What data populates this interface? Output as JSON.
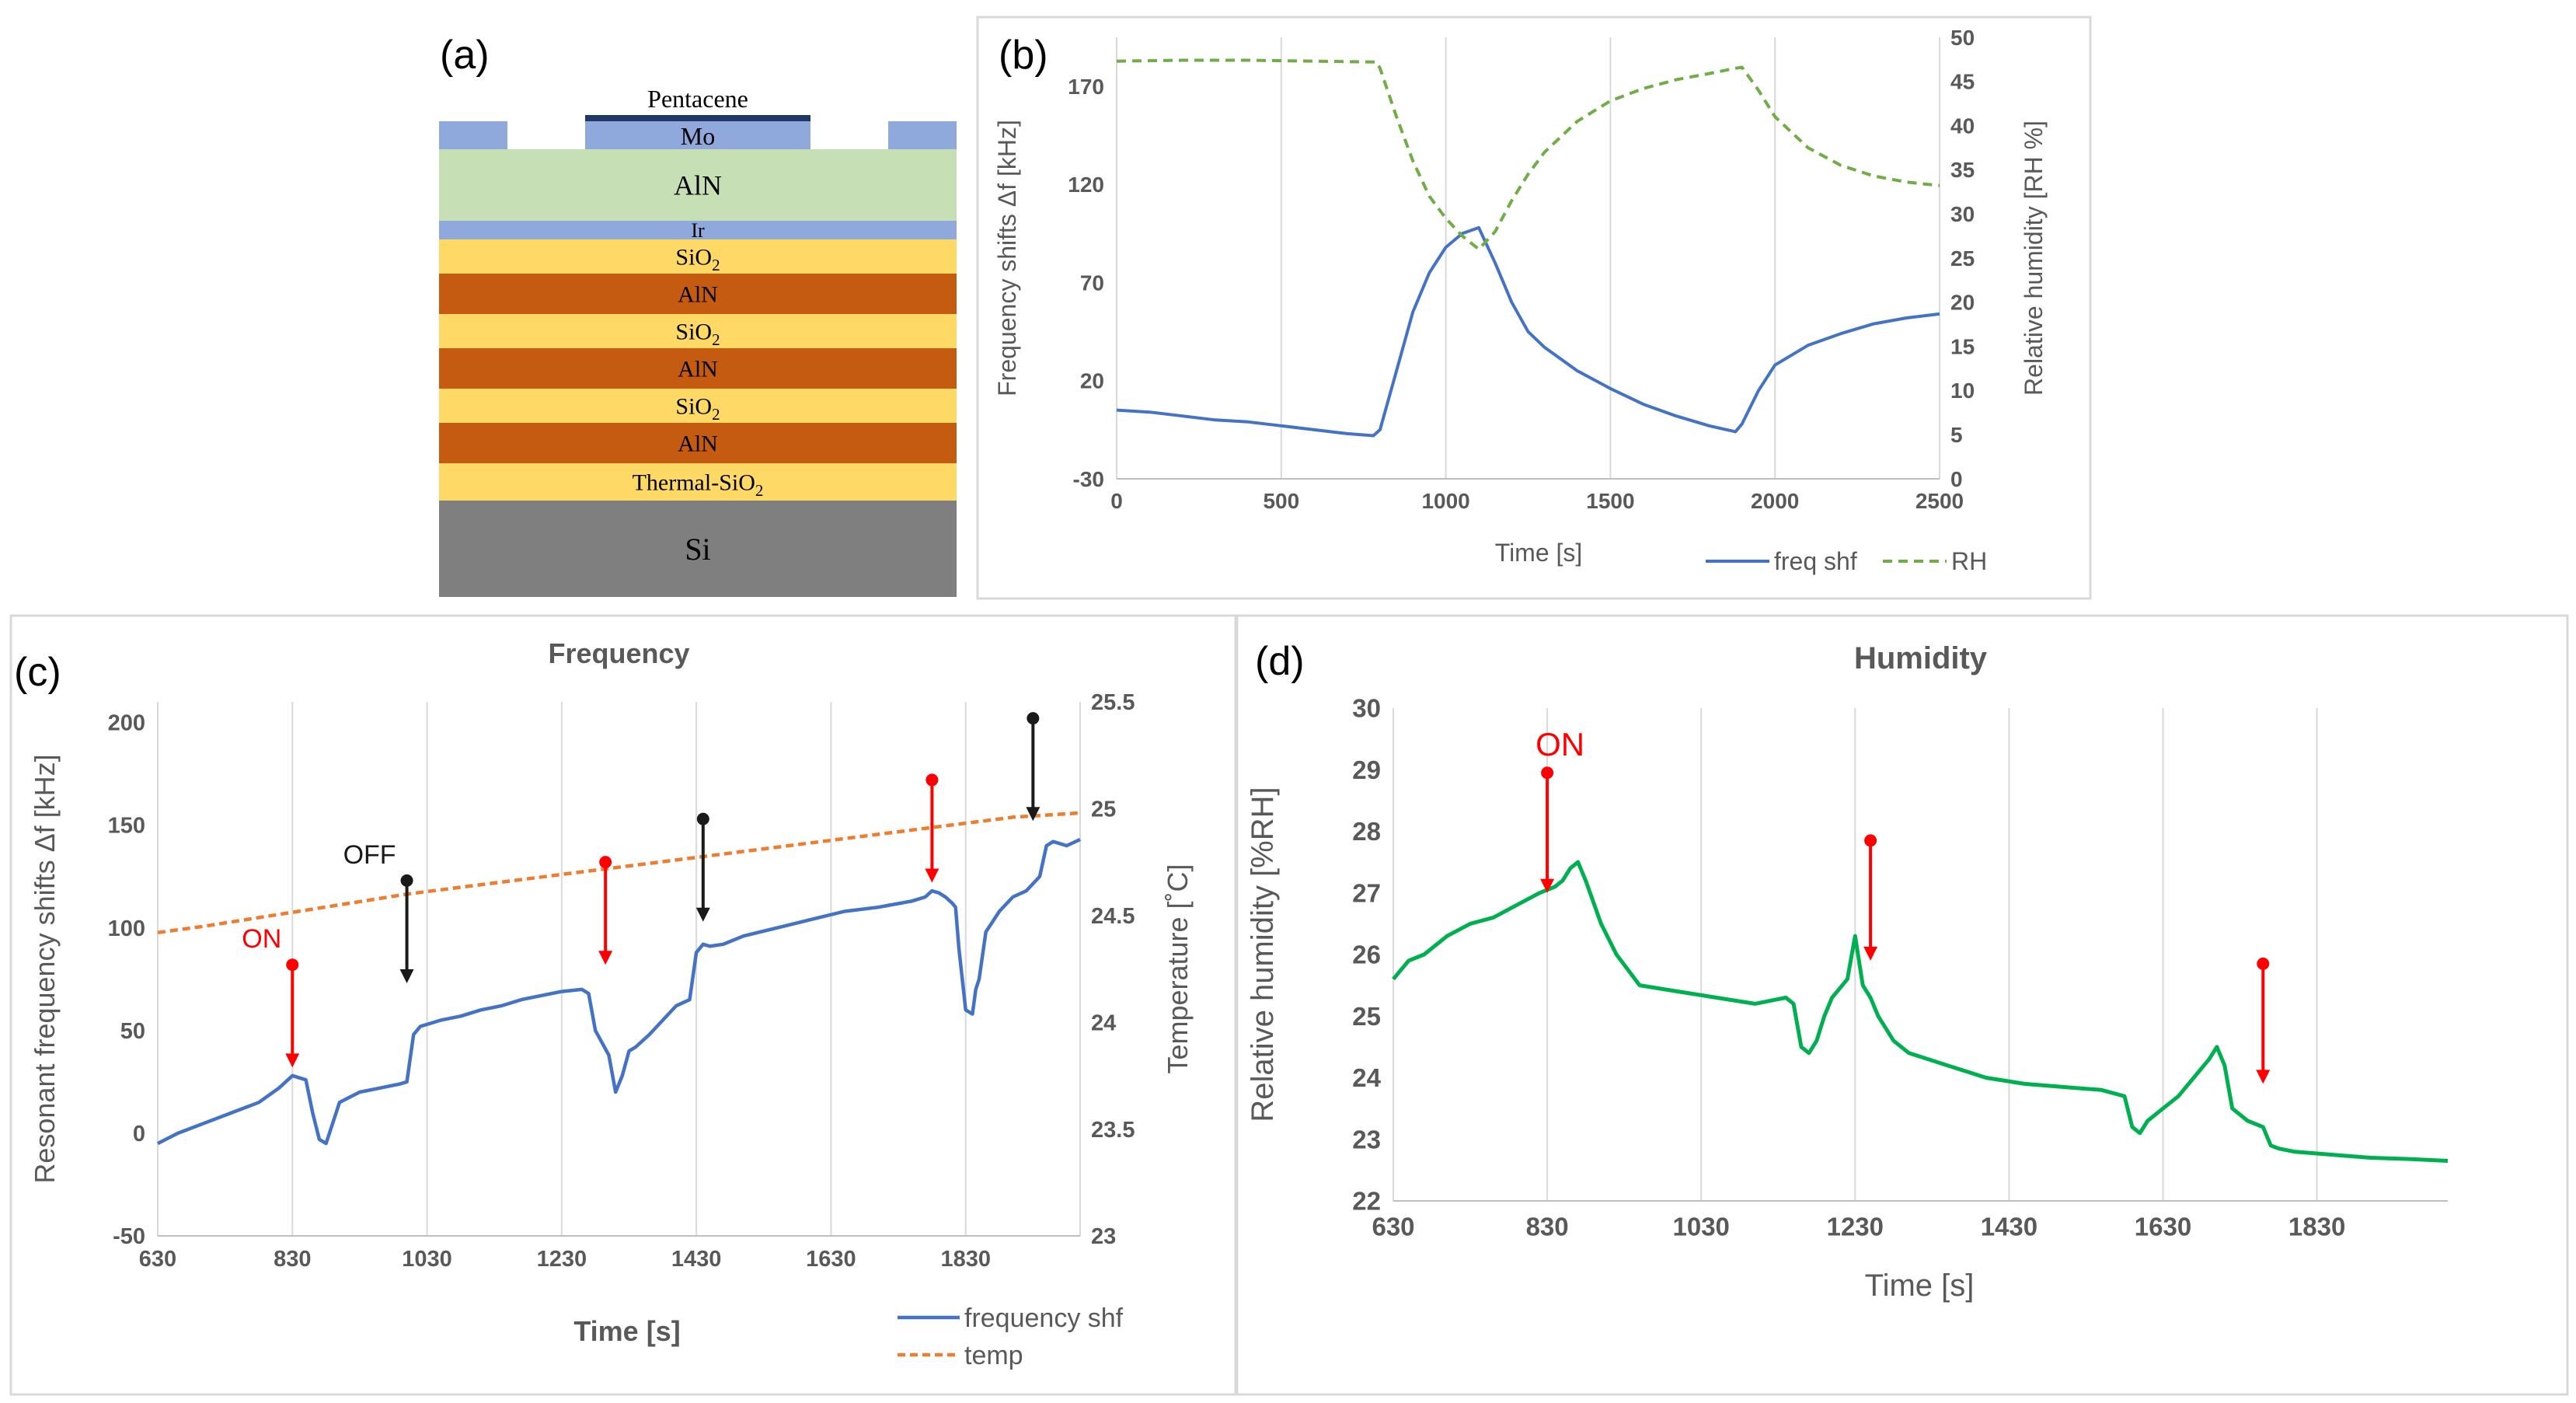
{
  "panels": {
    "a": {
      "label": "(a)"
    },
    "b": {
      "label": "(b)"
    },
    "c": {
      "label": "(c)"
    },
    "d": {
      "label": "(d)"
    }
  },
  "layer_stack": {
    "top": [
      "Pentacene",
      "Mo"
    ],
    "layers": [
      {
        "text": "AlN",
        "sub": "",
        "color": "#c6dfb4"
      },
      {
        "text": "Ir",
        "sub": "",
        "color": "#8fa9dc"
      },
      {
        "text": "SiO",
        "sub": "2",
        "color": "#ffd966"
      },
      {
        "text": "AlN",
        "sub": "",
        "color": "#c55a11"
      },
      {
        "text": "SiO",
        "sub": "2",
        "color": "#ffd966"
      },
      {
        "text": "AlN",
        "sub": "",
        "color": "#c55a11"
      },
      {
        "text": "SiO",
        "sub": "2",
        "color": "#ffd966"
      },
      {
        "text": "AlN",
        "sub": "",
        "color": "#c55a11"
      },
      {
        "text": "Thermal-SiO",
        "sub": "2",
        "color": "#ffd966"
      },
      {
        "text": "Si",
        "sub": "",
        "color": "#7f7f7f"
      }
    ],
    "colors": {
      "mo": "#8fa9dc",
      "pentacene": "#1f3864"
    }
  },
  "chart_data": [
    {
      "panel": "b",
      "type": "line",
      "title": "",
      "xlabel": "Time [s]",
      "ylabel": "Frequency shifts Δf [kHz]",
      "y2label": "Relative humidity [RH %]",
      "xlim": [
        0,
        2500
      ],
      "ylim": [
        -30,
        195
      ],
      "y2lim": [
        0,
        50
      ],
      "xticks": [
        "0",
        "500",
        "1000",
        "1500",
        "2000",
        "2500"
      ],
      "yticks": [
        "170",
        "120",
        "70",
        "20",
        "-30"
      ],
      "y2ticks": [
        "50",
        "45",
        "40",
        "35",
        "30",
        "25",
        "20",
        "15",
        "10",
        "5",
        "0"
      ],
      "grid": "vertical",
      "legend": "bottom-right",
      "series": [
        {
          "name": "freq shf",
          "axis": "left",
          "color": "#4472c4",
          "dash": "",
          "x": [
            0,
            100,
            200,
            300,
            400,
            500,
            600,
            700,
            780,
            800,
            850,
            900,
            950,
            1000,
            1050,
            1100,
            1150,
            1200,
            1250,
            1300,
            1400,
            1500,
            1600,
            1700,
            1800,
            1880,
            1900,
            1950,
            2000,
            2100,
            2200,
            2300,
            2400,
            2500
          ],
          "values": [
            5,
            4,
            2,
            0,
            -1,
            -3,
            -5,
            -7,
            -8,
            -5,
            25,
            55,
            75,
            88,
            95,
            98,
            80,
            60,
            45,
            37,
            25,
            16,
            8,
            2,
            -3,
            -6,
            -2,
            15,
            28,
            38,
            44,
            49,
            52,
            54
          ]
        },
        {
          "name": "RH",
          "axis": "right",
          "color": "#70ad47",
          "dash": "12,8",
          "x": [
            0,
            200,
            400,
            600,
            790,
            800,
            850,
            900,
            950,
            1000,
            1050,
            1100,
            1150,
            1200,
            1250,
            1300,
            1400,
            1500,
            1600,
            1700,
            1800,
            1880,
            1900,
            1950,
            2000,
            2100,
            2200,
            2300,
            2400,
            2500
          ],
          "values": [
            47.3,
            47.4,
            47.4,
            47.3,
            47.2,
            46.5,
            41,
            36,
            32,
            29.5,
            27.5,
            26,
            28,
            31.5,
            34.5,
            37,
            40.5,
            42.8,
            44.2,
            45.2,
            45.9,
            46.5,
            46.6,
            44,
            41,
            37.5,
            35.5,
            34.3,
            33.6,
            33.2
          ]
        }
      ]
    },
    {
      "panel": "c",
      "type": "line",
      "title": "Frequency",
      "xlabel": "Time [s]",
      "ylabel": "Resonant frequency shifts Δf [kHz]",
      "y2label": "Temperature [˚C]",
      "xlim": [
        630,
        2000
      ],
      "ylim": [
        -50,
        210
      ],
      "y2lim": [
        23,
        25.5
      ],
      "xticks": [
        "630",
        "830",
        "1030",
        "1230",
        "1430",
        "1630",
        "1830"
      ],
      "yticks": [
        "200",
        "150",
        "100",
        "50",
        "0",
        "-50"
      ],
      "y2ticks": [
        "25.5",
        "25",
        "24.5",
        "24",
        "23.5",
        "23"
      ],
      "grid": "vertical",
      "legend": "bottom-right",
      "series": [
        {
          "name": "frequency shf",
          "axis": "left",
          "color": "#4472c4",
          "dash": "",
          "x": [
            630,
            660,
            700,
            740,
            780,
            810,
            830,
            850,
            860,
            870,
            880,
            890,
            900,
            930,
            960,
            990,
            1000,
            1010,
            1020,
            1050,
            1080,
            1110,
            1140,
            1170,
            1200,
            1230,
            1260,
            1270,
            1280,
            1300,
            1310,
            1320,
            1330,
            1340,
            1360,
            1380,
            1400,
            1420,
            1430,
            1440,
            1450,
            1470,
            1500,
            1550,
            1600,
            1650,
            1700,
            1750,
            1770,
            1780,
            1790,
            1800,
            1810,
            1815,
            1820,
            1830,
            1840,
            1845,
            1850,
            1860,
            1870,
            1880,
            1900,
            1920,
            1940,
            1950,
            1960,
            1980,
            2000
          ],
          "values": [
            -5,
            0,
            5,
            10,
            15,
            22,
            28,
            26,
            10,
            -3,
            -5,
            5,
            15,
            20,
            22,
            24,
            25,
            48,
            52,
            55,
            57,
            60,
            62,
            65,
            67,
            69,
            70,
            68,
            50,
            38,
            20,
            28,
            40,
            42,
            48,
            55,
            62,
            65,
            88,
            92,
            91,
            92,
            96,
            100,
            104,
            108,
            110,
            113,
            115,
            118,
            117,
            115,
            112,
            110,
            90,
            60,
            58,
            70,
            75,
            98,
            103,
            108,
            115,
            118,
            125,
            140,
            142,
            140,
            143
          ]
        },
        {
          "name": "temp",
          "axis": "right",
          "color": "#ed7d31",
          "dash": "10,6",
          "x": [
            630,
            700,
            800,
            900,
            1000,
            1100,
            1200,
            1300,
            1400,
            1500,
            1600,
            1700,
            1800,
            1900,
            2000
          ],
          "values": [
            24.42,
            24.45,
            24.5,
            24.55,
            24.6,
            24.64,
            24.68,
            24.72,
            24.76,
            24.8,
            24.84,
            24.88,
            24.92,
            24.96,
            24.98
          ]
        }
      ],
      "annotations": [
        {
          "x": 830,
          "y_top": 82,
          "y_tip": 32,
          "color": "#ff0000",
          "label": "ON"
        },
        {
          "x": 1000,
          "y_top": 123,
          "y_tip": 73,
          "color": "#1a1a1a",
          "label": "OFF"
        },
        {
          "x": 1295,
          "y_top": 132,
          "y_tip": 82,
          "color": "#ff0000",
          "label": ""
        },
        {
          "x": 1440,
          "y_top": 153,
          "y_tip": 103,
          "color": "#1a1a1a",
          "label": ""
        },
        {
          "x": 1780,
          "y_top": 172,
          "y_tip": 122,
          "color": "#ff0000",
          "label": ""
        },
        {
          "x": 1930,
          "y_top": 202,
          "y_tip": 152,
          "color": "#1a1a1a",
          "label": ""
        }
      ]
    },
    {
      "panel": "d",
      "type": "line",
      "title": "Humidity",
      "xlabel": "Time [s]",
      "ylabel": "Relative humidity [%RH]",
      "xlim": [
        630,
        2000
      ],
      "ylim": [
        22,
        30
      ],
      "xticks": [
        "630",
        "830",
        "1030",
        "1230",
        "1430",
        "1630",
        "1830"
      ],
      "yticks": [
        "30",
        "29",
        "28",
        "27",
        "26",
        "25",
        "24",
        "23",
        "22"
      ],
      "grid": "vertical",
      "series": [
        {
          "name": "",
          "axis": "left",
          "color": "#00b050",
          "dash": "",
          "x": [
            630,
            650,
            670,
            700,
            730,
            760,
            790,
            820,
            840,
            850,
            860,
            870,
            880,
            900,
            920,
            950,
            1000,
            1050,
            1100,
            1140,
            1150,
            1160,
            1170,
            1180,
            1190,
            1200,
            1220,
            1230,
            1240,
            1250,
            1260,
            1280,
            1300,
            1350,
            1400,
            1450,
            1500,
            1550,
            1580,
            1590,
            1600,
            1610,
            1620,
            1630,
            1650,
            1670,
            1690,
            1700,
            1710,
            1720,
            1740,
            1760,
            1770,
            1780,
            1800,
            1850,
            1900,
            1950,
            2000
          ],
          "values": [
            25.6,
            25.9,
            26,
            26.3,
            26.5,
            26.6,
            26.8,
            27,
            27.1,
            27.2,
            27.4,
            27.5,
            27.2,
            26.5,
            26,
            25.5,
            25.4,
            25.3,
            25.2,
            25.3,
            25.2,
            24.5,
            24.4,
            24.6,
            25,
            25.3,
            25.6,
            26.3,
            25.5,
            25.3,
            25,
            24.6,
            24.4,
            24.2,
            24,
            23.9,
            23.85,
            23.8,
            23.7,
            23.2,
            23.1,
            23.3,
            23.4,
            23.5,
            23.7,
            24,
            24.3,
            24.5,
            24.2,
            23.5,
            23.3,
            23.2,
            22.9,
            22.85,
            22.8,
            22.75,
            22.7,
            22.68,
            22.65
          ]
        }
      ],
      "annotations": [
        {
          "x": 830,
          "y_top": 28.95,
          "y_tip": 27.0,
          "color": "#ff0000",
          "label": "ON"
        },
        {
          "x": 1250,
          "y_top": 27.85,
          "y_tip": 25.9,
          "color": "#ff0000",
          "label": ""
        },
        {
          "x": 1760,
          "y_top": 25.85,
          "y_tip": 23.9,
          "color": "#ff0000",
          "label": ""
        }
      ]
    }
  ]
}
